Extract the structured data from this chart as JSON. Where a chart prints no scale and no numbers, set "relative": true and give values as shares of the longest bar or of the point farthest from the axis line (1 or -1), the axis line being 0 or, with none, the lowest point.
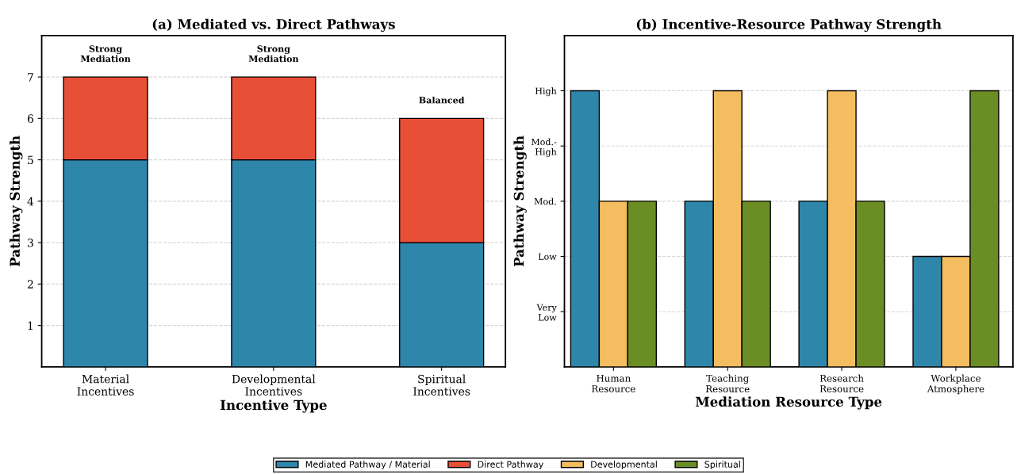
{
  "chart_data": [
    {
      "type": "bar",
      "title": "(a) Mediated vs. Direct Pathways",
      "xlabel": "Incentive Type",
      "ylabel": "Pathway Strength",
      "stacked": true,
      "categories": [
        "Material\nIncentives",
        "Developmental\nIncentives",
        "Spiritual\nIncentives"
      ],
      "series": [
        {
          "name": "Mediated Pathway / Material",
          "color": "#2e86ab",
          "values": [
            5,
            5,
            3
          ]
        },
        {
          "name": "Direct Pathway",
          "color": "#e84f37",
          "values": [
            2,
            2,
            3
          ]
        }
      ],
      "ylim": [
        0,
        8
      ],
      "yticks": [
        1,
        2,
        3,
        4,
        5,
        6,
        7
      ],
      "grid": "y",
      "legend": "bottom",
      "annotations": [
        "Strong\nMediation",
        "Strong\nMediation",
        "Balanced"
      ]
    },
    {
      "type": "bar",
      "title": "(b) Incentive-Resource Pathway Strength",
      "xlabel": "Mediation Resource Type",
      "ylabel": "Pathway Strength",
      "categories": [
        "Human\nResource",
        "Teaching\nResource",
        "Research\nResource",
        "Workplace\nAtmosphere"
      ],
      "series": [
        {
          "name": "Mediated Pathway / Material",
          "color": "#2e86ab",
          "values": [
            1,
            0.6,
            0.6,
            0.4
          ]
        },
        {
          "name": "Developmental",
          "color": "#f4bd60",
          "values": [
            0.6,
            1,
            1,
            0.4
          ]
        },
        {
          "name": "Spiritual",
          "color": "#6a8e23",
          "values": [
            0.6,
            0.6,
            0.6,
            1
          ]
        }
      ],
      "relative": true,
      "annotations": [
        "Very\nLow",
        "Low",
        "Mod.",
        "Mod.-\nHigh",
        "High"
      ],
      "grid": "y",
      "legend": "bottom"
    }
  ]
}
